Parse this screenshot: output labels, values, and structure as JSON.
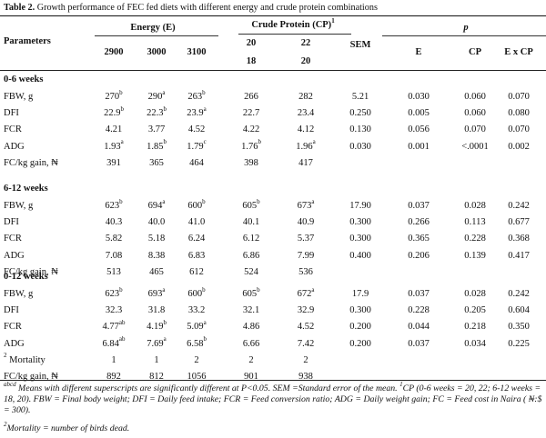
{
  "table": {
    "caption_label": "Table 2.",
    "caption_text": "Growth performance of FEC fed diets with different energy and crude protein combinations",
    "header": {
      "parameters": "Parameters",
      "energy": "Energy (E)",
      "cp": "Crude Protein (CP)",
      "cp_sup": "1",
      "sem": "SEM",
      "p": "p",
      "energy_levels": [
        "2900",
        "3000",
        "3100"
      ],
      "cp_levels_top": [
        "20",
        "22"
      ],
      "cp_levels_bottom": [
        "18",
        "20"
      ],
      "p_cols": [
        "E",
        "CP",
        "E x CP"
      ]
    },
    "sections": [
      {
        "title": "0-6 weeks",
        "rows": [
          {
            "label": "FBW, g",
            "cells": [
              [
                "270",
                "b"
              ],
              [
                "290",
                "a"
              ],
              [
                "263",
                "b"
              ],
              [
                "266",
                ""
              ],
              [
                "282",
                ""
              ],
              [
                "5.21",
                ""
              ],
              [
                "0.030",
                ""
              ],
              [
                "0.060",
                ""
              ],
              [
                "0.070",
                ""
              ]
            ]
          },
          {
            "label": "DFI",
            "cells": [
              [
                "22.9",
                "b"
              ],
              [
                "22.3",
                "b"
              ],
              [
                "23.9",
                "a"
              ],
              [
                "22.7",
                ""
              ],
              [
                "23.4",
                ""
              ],
              [
                "0.250",
                ""
              ],
              [
                "0.005",
                ""
              ],
              [
                "0.060",
                ""
              ],
              [
                "0.080",
                ""
              ]
            ]
          },
          {
            "label": "FCR",
            "cells": [
              [
                "4.21",
                ""
              ],
              [
                "3.77",
                ""
              ],
              [
                "4.52",
                ""
              ],
              [
                "4.22",
                ""
              ],
              [
                "4.12",
                ""
              ],
              [
                "0.130",
                ""
              ],
              [
                "0.056",
                ""
              ],
              [
                "0.070",
                ""
              ],
              [
                "0.070",
                ""
              ]
            ]
          },
          {
            "label": "ADG",
            "cells": [
              [
                "1.93",
                "a"
              ],
              [
                "1.85",
                "b"
              ],
              [
                "1.79",
                "c"
              ],
              [
                "1.76",
                "b"
              ],
              [
                "1.96",
                "a"
              ],
              [
                "0.030",
                ""
              ],
              [
                "0.001",
                ""
              ],
              [
                "<.0001",
                ""
              ],
              [
                "0.002",
                ""
              ]
            ]
          },
          {
            "label": "FC/kg gain, ₦",
            "cells": [
              [
                "391",
                ""
              ],
              [
                "365",
                ""
              ],
              [
                "464",
                ""
              ],
              [
                "398",
                ""
              ],
              [
                "417",
                ""
              ],
              [
                "",
                ""
              ],
              [
                "",
                ""
              ],
              [
                "",
                ""
              ],
              [
                "",
                ""
              ]
            ]
          }
        ]
      },
      {
        "title": "6-12 weeks",
        "rows": [
          {
            "label": "FBW, g",
            "cells": [
              [
                "623",
                "b"
              ],
              [
                "694",
                "a"
              ],
              [
                "600",
                "b"
              ],
              [
                "605",
                "b"
              ],
              [
                "673",
                "a"
              ],
              [
                "17.90",
                ""
              ],
              [
                "0.037",
                ""
              ],
              [
                "0.028",
                ""
              ],
              [
                "0.242",
                ""
              ]
            ]
          },
          {
            "label": "DFI",
            "cells": [
              [
                "40.3",
                ""
              ],
              [
                "40.0",
                ""
              ],
              [
                "41.0",
                ""
              ],
              [
                "40.1",
                ""
              ],
              [
                "40.9",
                ""
              ],
              [
                "0.300",
                ""
              ],
              [
                "0.266",
                ""
              ],
              [
                "0.113",
                ""
              ],
              [
                "0.677",
                ""
              ]
            ]
          },
          {
            "label": "FCR",
            "cells": [
              [
                "5.82",
                ""
              ],
              [
                "5.18",
                ""
              ],
              [
                "6.24",
                ""
              ],
              [
                "6.12",
                ""
              ],
              [
                "5.37",
                ""
              ],
              [
                "0.300",
                ""
              ],
              [
                "0.365",
                ""
              ],
              [
                "0.228",
                ""
              ],
              [
                "0.368",
                ""
              ]
            ]
          },
          {
            "label": "ADG",
            "cells": [
              [
                "7.08",
                ""
              ],
              [
                "8.38",
                ""
              ],
              [
                "6.83",
                ""
              ],
              [
                "6.86",
                ""
              ],
              [
                "7.99",
                ""
              ],
              [
                "0.400",
                ""
              ],
              [
                "0.206",
                ""
              ],
              [
                "0.139",
                ""
              ],
              [
                "0.417",
                ""
              ]
            ]
          },
          {
            "label": "FC/kg gain, ₦",
            "cells": [
              [
                "513",
                ""
              ],
              [
                "465",
                ""
              ],
              [
                "612",
                ""
              ],
              [
                "524",
                ""
              ],
              [
                "536",
                ""
              ],
              [
                "",
                ""
              ],
              [
                "",
                ""
              ],
              [
                "",
                ""
              ],
              [
                "",
                ""
              ]
            ]
          }
        ]
      },
      {
        "title": "0-12 weeks",
        "rows": [
          {
            "label": "FBW, g",
            "cells": [
              [
                "623",
                "b"
              ],
              [
                "693",
                "a"
              ],
              [
                "600",
                "b"
              ],
              [
                "605",
                "b"
              ],
              [
                "672",
                "a"
              ],
              [
                "17.9",
                ""
              ],
              [
                "0.037",
                ""
              ],
              [
                "0.028",
                ""
              ],
              [
                "0.242",
                ""
              ]
            ]
          },
          {
            "label": "DFI",
            "cells": [
              [
                "32.3",
                ""
              ],
              [
                "31.8",
                ""
              ],
              [
                "33.2",
                ""
              ],
              [
                "32.1",
                ""
              ],
              [
                "32.9",
                ""
              ],
              [
                "0.300",
                ""
              ],
              [
                "0.228",
                ""
              ],
              [
                "0.205",
                ""
              ],
              [
                "0.604",
                ""
              ]
            ]
          },
          {
            "label": "FCR",
            "cells": [
              [
                "4.77",
                "ab"
              ],
              [
                "4.19",
                "b"
              ],
              [
                "5.09",
                "a"
              ],
              [
                "4.86",
                ""
              ],
              [
                "4.52",
                ""
              ],
              [
                "0.200",
                ""
              ],
              [
                "0.044",
                ""
              ],
              [
                "0.218",
                ""
              ],
              [
                "0.350",
                ""
              ]
            ]
          },
          {
            "label": "ADG",
            "cells": [
              [
                "6.84",
                "ab"
              ],
              [
                "7.69",
                "a"
              ],
              [
                "6.58",
                "b"
              ],
              [
                "6.66",
                ""
              ],
              [
                "7.42",
                ""
              ],
              [
                "0.200",
                ""
              ],
              [
                "0.037",
                ""
              ],
              [
                "0.034",
                ""
              ],
              [
                "0.225",
                ""
              ]
            ]
          },
          {
            "label": "Mortality",
            "label_sup": "2",
            "cells": [
              [
                "1",
                ""
              ],
              [
                "1",
                ""
              ],
              [
                "2",
                ""
              ],
              [
                "2",
                ""
              ],
              [
                "2",
                ""
              ],
              [
                "",
                ""
              ],
              [
                "",
                ""
              ],
              [
                "",
                ""
              ],
              [
                "",
                ""
              ]
            ]
          },
          {
            "label": "FC/kg gain, ₦",
            "cells": [
              [
                "892",
                ""
              ],
              [
                "812",
                ""
              ],
              [
                "1056",
                ""
              ],
              [
                "901",
                ""
              ],
              [
                "938",
                ""
              ],
              [
                "",
                ""
              ],
              [
                "",
                ""
              ],
              [
                "",
                ""
              ],
              [
                "",
                ""
              ]
            ]
          }
        ]
      }
    ],
    "footnotes": {
      "line1_sup": "abcd",
      "line1": " Means with different superscripts are significantly different at P<0.05. SEM =Standard error of the mean. ",
      "line1_sup2": "1",
      "line1b": "CP (0-6 weeks = 20, 22; 6-12 weeks = 18, 20). FBW = Final body weight; DFI = Daily feed intake; FCR = Feed conversion ratio; ADG = Daily weight gain; FC = Feed cost in Naira ( ₦:$ = 300).",
      "line2_sup": "2",
      "line2": "Mortality = number of birds dead."
    }
  }
}
